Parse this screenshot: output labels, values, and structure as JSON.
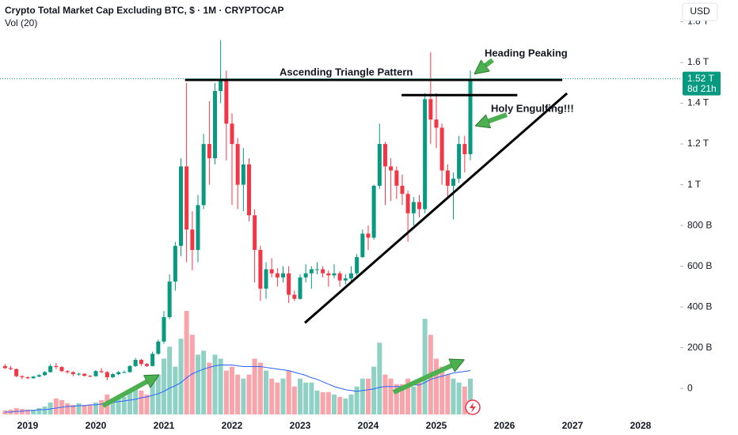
{
  "chart_data": {
    "type": "candlestick",
    "title": "Crypto Total Market Cap Excluding BTC, $ · 1M · CRYPTOCAP",
    "subtitle": "Vol (20)",
    "currency": "USD",
    "x": [
      2018.667,
      2018.75,
      2018.833,
      2018.917,
      2019,
      2019.083,
      2019.167,
      2019.25,
      2019.333,
      2019.417,
      2019.5,
      2019.583,
      2019.667,
      2019.75,
      2019.833,
      2019.917,
      2020,
      2020.083,
      2020.167,
      2020.25,
      2020.333,
      2020.417,
      2020.5,
      2020.583,
      2020.667,
      2020.75,
      2020.833,
      2020.917,
      2021,
      2021.083,
      2021.167,
      2021.25,
      2021.333,
      2021.417,
      2021.5,
      2021.583,
      2021.667,
      2021.75,
      2021.833,
      2021.917,
      2022,
      2022.083,
      2022.167,
      2022.25,
      2022.333,
      2022.417,
      2022.5,
      2022.583,
      2022.667,
      2022.75,
      2022.833,
      2022.917,
      2023,
      2023.083,
      2023.167,
      2023.25,
      2023.333,
      2023.417,
      2023.5,
      2023.583,
      2023.667,
      2023.75,
      2023.833,
      2023.917,
      2024,
      2024.083,
      2024.167,
      2024.25,
      2024.333,
      2024.417,
      2024.5,
      2024.583,
      2024.667,
      2024.75,
      2024.833,
      2024.917,
      2025,
      2025.083,
      2025.167,
      2025.25,
      2025.333,
      2025.417,
      2025.5
    ],
    "open": [
      110,
      100,
      95,
      60,
      55,
      50,
      58,
      65,
      80,
      110,
      105,
      85,
      80,
      70,
      72,
      62,
      60,
      85,
      80,
      55,
      70,
      80,
      80,
      110,
      140,
      120,
      110,
      170,
      230,
      350,
      525,
      700,
      1090,
      780,
      680,
      900,
      1200,
      1130,
      1460,
      1520,
      1300,
      1200,
      1000,
      1100,
      850,
      680,
      490,
      585,
      565,
      545,
      565,
      460,
      440,
      545,
      565,
      585,
      585,
      565,
      555,
      565,
      530,
      540,
      565,
      645,
      760,
      740,
      995,
      1200,
      1090,
      1070,
      995,
      955,
      860,
      915,
      880,
      1420,
      1320,
      1280,
      1070,
      995,
      1030,
      1200,
      1150
    ],
    "high": [
      120,
      110,
      98,
      65,
      60,
      62,
      70,
      85,
      120,
      125,
      110,
      90,
      85,
      78,
      75,
      65,
      90,
      100,
      85,
      75,
      85,
      88,
      115,
      150,
      145,
      125,
      180,
      240,
      380,
      560,
      720,
      1130,
      1500,
      870,
      950,
      1250,
      1410,
      1500,
      1710,
      1560,
      1350,
      1230,
      1180,
      1130,
      880,
      700,
      620,
      640,
      590,
      600,
      600,
      480,
      560,
      610,
      600,
      620,
      600,
      580,
      610,
      575,
      560,
      600,
      660,
      780,
      800,
      1000,
      1300,
      1210,
      1130,
      1090,
      1050,
      970,
      940,
      950,
      1450,
      1650,
      1450,
      1300,
      1100,
      1060,
      1240,
      1240,
      1560
    ],
    "low": [
      95,
      90,
      55,
      45,
      45,
      48,
      55,
      62,
      78,
      95,
      80,
      72,
      60,
      62,
      58,
      55,
      58,
      75,
      40,
      52,
      65,
      75,
      78,
      105,
      110,
      105,
      108,
      165,
      220,
      340,
      480,
      650,
      620,
      580,
      620,
      880,
      1000,
      1100,
      1400,
      1120,
      900,
      880,
      870,
      820,
      520,
      430,
      440,
      545,
      500,
      520,
      420,
      430,
      435,
      520,
      490,
      560,
      545,
      500,
      540,
      500,
      510,
      520,
      555,
      640,
      680,
      730,
      980,
      900,
      920,
      930,
      900,
      720,
      800,
      840,
      860,
      1200,
      1180,
      1000,
      940,
      830,
      1010,
      1060,
      1120
    ],
    "close": [
      100,
      95,
      60,
      55,
      50,
      58,
      65,
      80,
      110,
      105,
      85,
      80,
      70,
      72,
      62,
      60,
      85,
      80,
      55,
      70,
      80,
      80,
      110,
      140,
      120,
      110,
      170,
      230,
      350,
      525,
      700,
      1090,
      780,
      680,
      900,
      1200,
      1130,
      1460,
      1520,
      1300,
      1200,
      1000,
      1100,
      850,
      680,
      490,
      585,
      565,
      545,
      565,
      460,
      440,
      545,
      565,
      585,
      585,
      565,
      555,
      565,
      530,
      540,
      565,
      645,
      760,
      740,
      995,
      1200,
      1090,
      1070,
      995,
      955,
      860,
      915,
      880,
      1420,
      1320,
      1280,
      1070,
      995,
      1030,
      1200,
      1150,
      1520
    ],
    "up_color": "#089981",
    "down_color": "#f23645",
    "xlim": [
      2018.593,
      2028.535
    ],
    "xticks": [
      2019,
      2020,
      2021,
      2022,
      2023,
      2024,
      2025,
      2026,
      2027,
      2028
    ],
    "ylim": [
      -151,
      1907
    ],
    "yticks": [
      0,
      {
        "value": 200,
        "label": "200 B"
      },
      {
        "value": 400,
        "label": "400 B"
      },
      {
        "value": 600,
        "label": "600 B"
      },
      {
        "value": 800,
        "label": "800 B"
      },
      {
        "value": 1000,
        "label": "1 T"
      },
      {
        "value": 1200,
        "label": "1.2 T"
      },
      {
        "value": 1400,
        "label": "1.4 T"
      },
      {
        "value": 1600,
        "label": "1.6 T"
      },
      {
        "value": 1800,
        "label": "1.8 T"
      }
    ],
    "last_price": {
      "value": 1520,
      "label": "1.52 T"
    },
    "countdown": "8d 21h",
    "volume": {
      "values": [
        5,
        6,
        8,
        7,
        6,
        6,
        8,
        10,
        15,
        20,
        18,
        14,
        12,
        14,
        12,
        12,
        15,
        18,
        25,
        20,
        22,
        22,
        28,
        35,
        30,
        25,
        40,
        50,
        70,
        85,
        60,
        95,
        130,
        100,
        75,
        80,
        65,
        75,
        70,
        55,
        60,
        50,
        45,
        50,
        70,
        65,
        55,
        45,
        40,
        45,
        55,
        35,
        45,
        40,
        40,
        30,
        28,
        28,
        25,
        22,
        20,
        25,
        35,
        45,
        45,
        60,
        90,
        50,
        45,
        38,
        38,
        45,
        35,
        40,
        120,
        100,
        70,
        60,
        50,
        45,
        40,
        35,
        45
      ],
      "ylim": [
        0,
        135
      ],
      "up_color": "rgba(8,153,129,0.45)",
      "down_color": "rgba(242,54,69,0.45)"
    },
    "volume_ma": {
      "values": [
        3,
        3,
        4,
        4,
        5,
        5,
        6,
        6,
        7,
        8,
        9,
        10,
        10,
        11,
        11,
        12,
        12,
        13,
        14,
        15,
        16,
        17,
        18,
        19,
        21,
        22,
        24,
        26,
        29,
        33,
        36,
        40,
        46,
        51,
        54,
        57,
        59,
        61,
        62,
        62,
        62,
        61,
        60,
        60,
        60,
        60,
        59,
        58,
        57,
        56,
        55,
        53,
        51,
        49,
        46,
        44,
        41,
        38,
        35,
        33,
        31,
        30,
        29,
        30,
        31,
        32,
        34,
        35,
        35,
        35,
        35,
        36,
        37,
        37,
        40,
        44,
        46,
        48,
        50,
        52,
        53,
        54,
        55
      ],
      "color": "#2962ff"
    },
    "trend_lines": [
      {
        "x": [
          2021.31,
          2026.85
        ],
        "y": [
          1515,
          1515
        ]
      },
      {
        "x": [
          2024.49,
          2026.19
        ],
        "y": [
          1440,
          1440
        ]
      },
      {
        "x": [
          2023.07,
          2026.92
        ],
        "y": [
          322,
          1449
        ]
      }
    ],
    "annotations": [
      "Ascending Triangle Pattern",
      "Heading Peaking",
      "Holy Engulfing!!!"
    ]
  }
}
